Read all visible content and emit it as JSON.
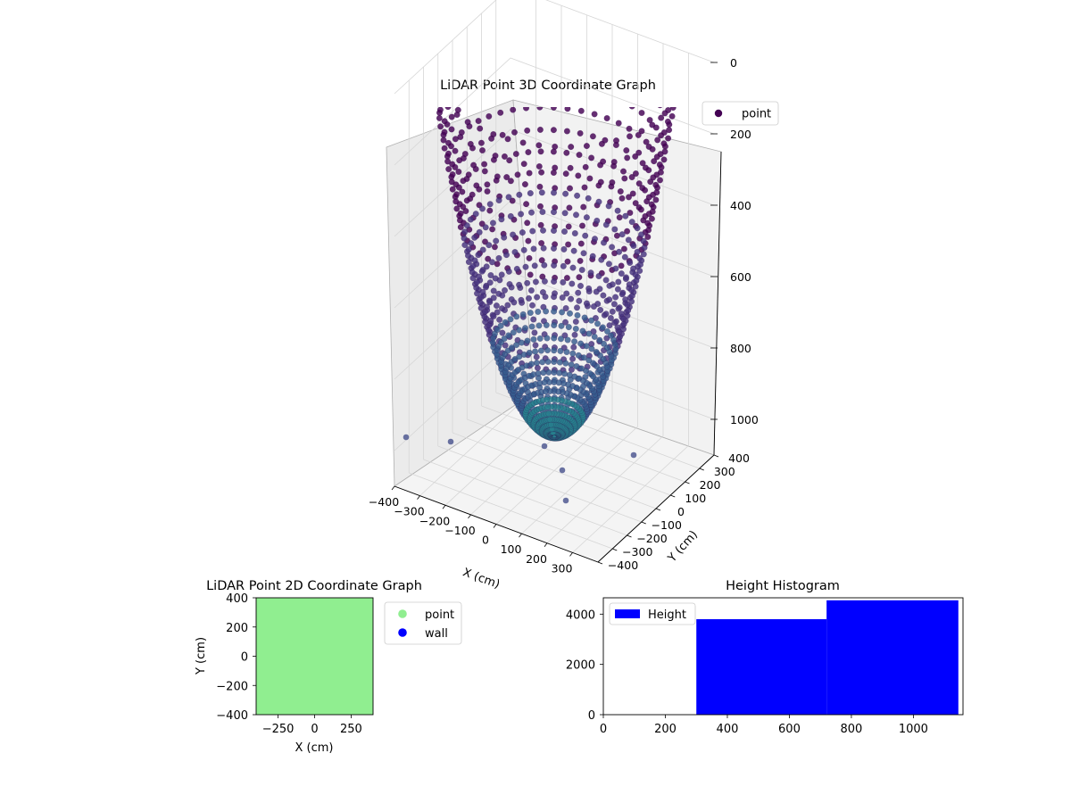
{
  "chart_data": [
    {
      "type": "scatter3d",
      "title": "LiDAR Point 3D Coordinate Graph",
      "xlabel": "X (cm)",
      "ylabel": "Y (cm)",
      "zlabel": "",
      "xlim": [
        -400,
        400
      ],
      "ylim": [
        -400,
        400
      ],
      "zlim": [
        -1100,
        0
      ],
      "x_ticks": [
        -400,
        -300,
        -200,
        -100,
        0,
        100,
        200,
        300
      ],
      "x_tick_labels": [
        "−400",
        "−300",
        "−200",
        "−100",
        "0",
        "100",
        "200",
        "300"
      ],
      "y_ticks": [
        -400,
        -300,
        -200,
        -100,
        0,
        100,
        200,
        300,
        400
      ],
      "y_tick_labels": [
        "−400",
        "−300",
        "−200",
        "−100",
        "0",
        "100",
        "200",
        "300",
        "400"
      ],
      "z_ticks": [
        0,
        -200,
        -400,
        -600,
        -800,
        -1000
      ],
      "z_tick_labels": [
        "0",
        "200",
        "400",
        "600",
        "800",
        "1000"
      ],
      "grid": true,
      "legend": {
        "placement": "top-right",
        "entries": [
          {
            "label": "point",
            "color": "#440154"
          }
        ]
      },
      "surface": {
        "shape": "paraboloid-bowl",
        "rim_z": 0,
        "bottom_z": -1000,
        "rim_radius": 400,
        "colormap": [
          "#440154",
          "#46327e",
          "#365c8d",
          "#277f8e"
        ]
      }
    },
    {
      "type": "scatter",
      "title": "LiDAR Point 2D Coordinate Graph",
      "xlabel": "X (cm)",
      "ylabel": "Y (cm)",
      "xlim": [
        -400,
        400
      ],
      "ylim": [
        -400,
        400
      ],
      "x_ticks": [
        -250,
        0,
        250
      ],
      "x_tick_labels": [
        "−250",
        "0",
        "250"
      ],
      "y_ticks": [
        400,
        200,
        0,
        -200,
        -400
      ],
      "y_tick_labels": [
        "400",
        "200",
        "0",
        "−200",
        "−400"
      ],
      "legend": {
        "placement": "outside-right",
        "entries": [
          {
            "label": "point",
            "color": "#90ee90"
          },
          {
            "label": "wall",
            "color": "#0000ff"
          }
        ]
      },
      "fill_color": "#90ee90"
    },
    {
      "type": "bar",
      "title": "Height Histogram",
      "xlabel": "",
      "ylabel": "",
      "xlim": [
        0,
        1160
      ],
      "ylim": [
        0,
        4650
      ],
      "x_ticks": [
        0,
        200,
        400,
        600,
        800,
        1000
      ],
      "x_tick_labels": [
        "0",
        "200",
        "400",
        "600",
        "800",
        "1000"
      ],
      "y_ticks": [
        0,
        2000,
        4000
      ],
      "y_tick_labels": [
        "0",
        "2000",
        "4000"
      ],
      "bins": [
        {
          "start": 300,
          "end": 720,
          "value": 3800
        },
        {
          "start": 720,
          "end": 1145,
          "value": 4550
        }
      ],
      "color": "#0000ff",
      "legend": {
        "placement": "top-left",
        "entries": [
          {
            "label": "Height",
            "color": "#0000ff"
          }
        ]
      }
    }
  ]
}
